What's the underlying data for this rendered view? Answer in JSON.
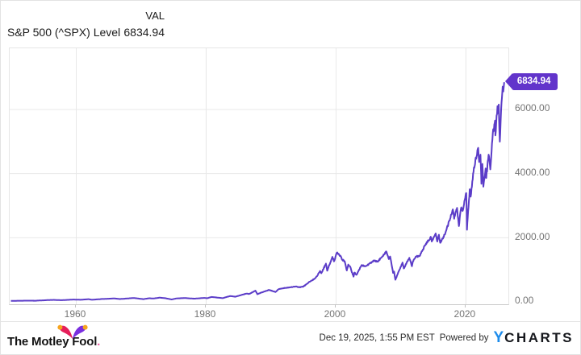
{
  "header": {
    "series_label": "S&P 500 (^SPX) Level",
    "value_column_header": "VAL",
    "value": "6834.94"
  },
  "badge": {
    "text": "6834.94",
    "color": "#6234cb"
  },
  "chart_data": {
    "type": "line",
    "title": "S&P 500 (^SPX) Level",
    "xlabel": "",
    "ylabel": "",
    "legend_position": "none",
    "grid": true,
    "line_color": "#5b3cc8",
    "x_range": [
      1949.81,
      2026.6
    ],
    "y_range": [
      -88,
      7895
    ],
    "x_ticks": [
      1960,
      1980,
      2000,
      2020
    ],
    "x_tick_labels": [
      "1960",
      "1980",
      "2000",
      "2020"
    ],
    "y_ticks": [
      0,
      2000,
      4000,
      6000
    ],
    "y_tick_labels": [
      "0.00",
      "2000.00",
      "4000.00",
      "6000.00"
    ],
    "last_point": {
      "x": 2025.96,
      "y": 6834.94
    },
    "keyframes": [
      [
        1950.0,
        16.9
      ],
      [
        1951.0,
        21.5
      ],
      [
        1952.0,
        24.2
      ],
      [
        1953.0,
        26.2
      ],
      [
        1953.7,
        22.8
      ],
      [
        1954.9,
        34
      ],
      [
        1955.9,
        45
      ],
      [
        1956.6,
        49
      ],
      [
        1957.8,
        39.5
      ],
      [
        1959.6,
        60
      ],
      [
        1960.8,
        53
      ],
      [
        1961.95,
        72
      ],
      [
        1962.5,
        53
      ],
      [
        1963.9,
        75
      ],
      [
        1965.9,
        94
      ],
      [
        1966.8,
        76
      ],
      [
        1968.9,
        108
      ],
      [
        1970.4,
        72
      ],
      [
        1971.3,
        101
      ],
      [
        1971.9,
        92
      ],
      [
        1972.95,
        119
      ],
      [
        1973.7,
        104
      ],
      [
        1974.75,
        63
      ],
      [
        1975.5,
        95
      ],
      [
        1976.75,
        107
      ],
      [
        1978.2,
        87
      ],
      [
        1979.8,
        111
      ],
      [
        1980.2,
        100
      ],
      [
        1980.9,
        140
      ],
      [
        1982.6,
        103
      ],
      [
        1983.75,
        170
      ],
      [
        1984.55,
        148
      ],
      [
        1986.3,
        247
      ],
      [
        1986.7,
        236
      ],
      [
        1987.65,
        336
      ],
      [
        1987.95,
        225
      ],
      [
        1988.3,
        258
      ],
      [
        1989.75,
        359
      ],
      [
        1990.75,
        295
      ],
      [
        1991.2,
        380
      ],
      [
        1992.0,
        417
      ],
      [
        1993.9,
        466
      ],
      [
        1994.3,
        445
      ],
      [
        1995.0,
        460
      ],
      [
        1996.0,
        615
      ],
      [
        1996.5,
        670
      ],
      [
        1997.15,
        790
      ],
      [
        1997.6,
        950
      ],
      [
        1997.8,
        880
      ],
      [
        1998.5,
        1180
      ],
      [
        1998.7,
        960
      ],
      [
        1999.5,
        1390
      ],
      [
        1999.75,
        1250
      ],
      [
        2000.2,
        1520
      ],
      [
        2000.7,
        1430
      ],
      [
        2000.95,
        1320
      ],
      [
        2001.4,
        1250
      ],
      [
        2001.72,
        966
      ],
      [
        2001.95,
        1150
      ],
      [
        2002.2,
        1100
      ],
      [
        2002.75,
        776
      ],
      [
        2002.9,
        900
      ],
      [
        2003.2,
        830
      ],
      [
        2004.0,
        1130
      ],
      [
        2004.6,
        1095
      ],
      [
        2005.9,
        1270
      ],
      [
        2006.5,
        1240
      ],
      [
        2007.8,
        1560
      ],
      [
        2008.2,
        1320
      ],
      [
        2008.4,
        1400
      ],
      [
        2008.85,
        890
      ],
      [
        2009.0,
        930
      ],
      [
        2009.2,
        677
      ],
      [
        2010.3,
        1215
      ],
      [
        2010.5,
        1030
      ],
      [
        2011.35,
        1360
      ],
      [
        2011.75,
        1100
      ],
      [
        2011.9,
        1250
      ],
      [
        2012.4,
        1400
      ],
      [
        2012.9,
        1410
      ],
      [
        2013.9,
        1800
      ],
      [
        2014.7,
        2000
      ],
      [
        2014.8,
        1870
      ],
      [
        2015.4,
        2120
      ],
      [
        2015.65,
        1870
      ],
      [
        2015.9,
        2080
      ],
      [
        2016.1,
        1830
      ],
      [
        2016.9,
        2130
      ],
      [
        2018.05,
        2870
      ],
      [
        2018.25,
        2580
      ],
      [
        2018.7,
        2920
      ],
      [
        2018.98,
        2350
      ],
      [
        2019.3,
        2900
      ],
      [
        2019.6,
        2850
      ],
      [
        2020.12,
        3380
      ],
      [
        2020.22,
        2237
      ],
      [
        2020.65,
        3500
      ],
      [
        2020.8,
        3270
      ],
      [
        2021.3,
        4180
      ],
      [
        2021.7,
        4520
      ],
      [
        2021.95,
        4790
      ],
      [
        2022.1,
        4350
      ],
      [
        2022.3,
        4580
      ],
      [
        2022.45,
        3670
      ],
      [
        2022.6,
        4290
      ],
      [
        2022.75,
        3580
      ],
      [
        2023.1,
        4150
      ],
      [
        2023.2,
        3850
      ],
      [
        2023.55,
        4580
      ],
      [
        2023.82,
        4120
      ],
      [
        2024.2,
        5250
      ],
      [
        2024.55,
        5640
      ],
      [
        2024.6,
        5180
      ],
      [
        2024.92,
        6090
      ],
      [
        2025.05,
        5870
      ],
      [
        2025.12,
        6140
      ],
      [
        2025.28,
        4985
      ],
      [
        2025.55,
        6200
      ],
      [
        2025.72,
        6700
      ],
      [
        2025.82,
        6550
      ],
      [
        2025.9,
        6720
      ],
      [
        2025.96,
        6834.94
      ]
    ]
  },
  "footer": {
    "brand": "The Motley Fool",
    "brand_dot": ".",
    "timestamp": "Dec 19, 2025, 1:55 PM EST",
    "powered_by": "Powered by",
    "ycharts_y": "Y",
    "ycharts_rest": "CHARTS"
  },
  "colors": {
    "line": "#5b3cc8",
    "badge": "#6234cb",
    "grid": "#e8e8e8",
    "axis": "#c9c9c9",
    "ycharts_blue": "#1e8ceb",
    "hat_left": "#e51e5a",
    "hat_right": "#7a2ee0",
    "hat_ball": "#f6a41f"
  }
}
